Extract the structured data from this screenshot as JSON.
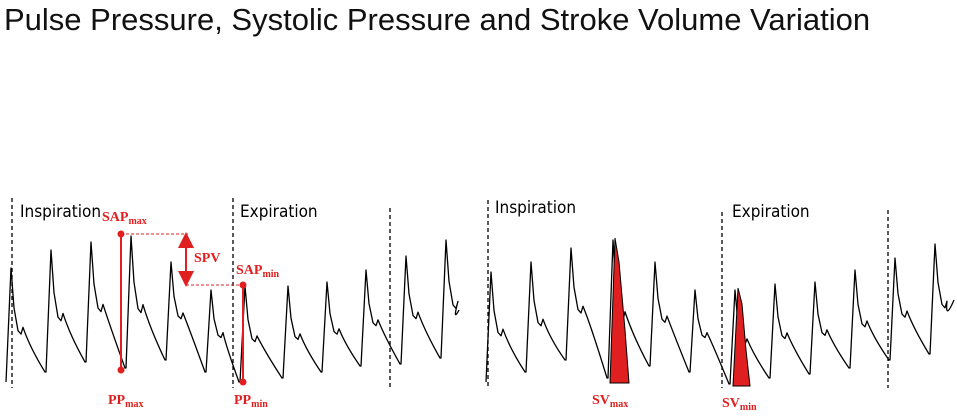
{
  "title": "Pulse Pressure, Systolic Pressure and Stroke Volume Variation",
  "left": {
    "phases": [
      "Inspiration",
      "Expiration"
    ],
    "sap_max": {
      "main": "SAP",
      "sub": "max"
    },
    "spv": "SPV",
    "sap_min": {
      "main": "SAP",
      "sub": "min"
    },
    "pp_max": {
      "main": "PP",
      "sub": "max"
    },
    "pp_min": {
      "main": "PP",
      "sub": "min"
    }
  },
  "right": {
    "phases": [
      "Inspiration",
      "Expiration"
    ],
    "sv_max": {
      "main": "SV",
      "sub": "max"
    },
    "sv_min": {
      "main": "SV",
      "sub": "min"
    }
  }
}
